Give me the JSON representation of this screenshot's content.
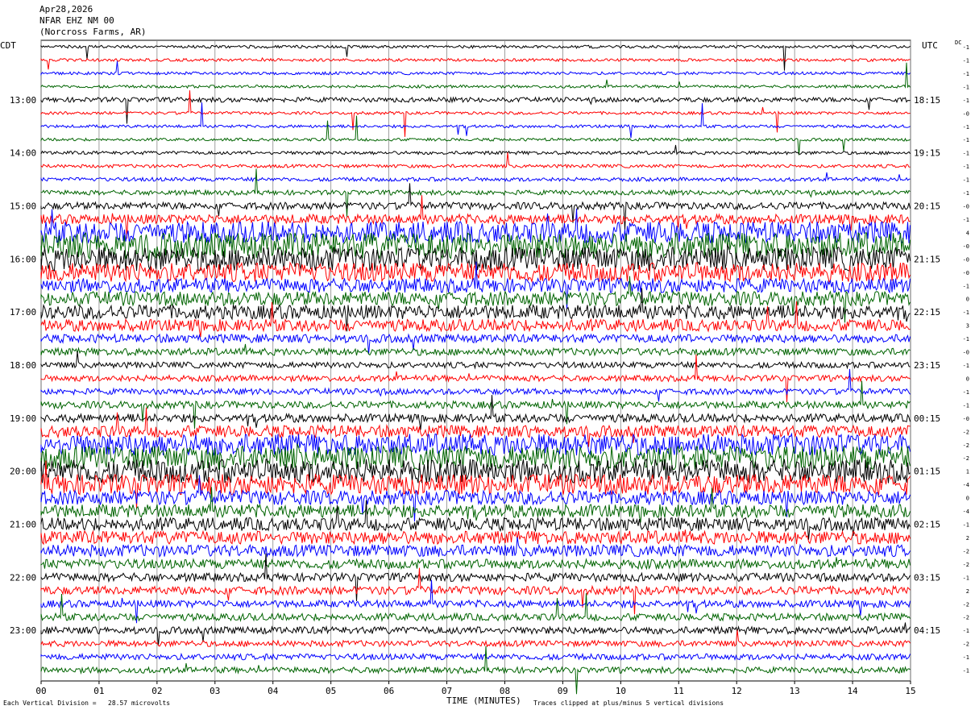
{
  "header": {
    "date": "Apr28,2026",
    "station": "NFAR EHZ NM 00",
    "location": "(Norcross Farms, AR)"
  },
  "left_timezone": "CDT",
  "right_timezone": "UTC",
  "dc_label": "DC",
  "footer": {
    "scale_note": "Each Vertical Division =   28.57 microvolts",
    "clip_note": "Traces clipped at plus/minus 5 vertical divisions"
  },
  "chart_data": {
    "type": "line",
    "xlabel": "TIME (MINUTES)",
    "xlim": [
      0,
      15
    ],
    "x_ticks": [
      "00",
      "01",
      "02",
      "03",
      "04",
      "05",
      "06",
      "07",
      "08",
      "09",
      "10",
      "11",
      "12",
      "13",
      "14",
      "15"
    ],
    "trace_count": 48,
    "colors": [
      "#000000",
      "#ff0000",
      "#0000ff",
      "#006400"
    ],
    "left_hour_labels": [
      {
        "trace": 4,
        "label": "13:00"
      },
      {
        "trace": 8,
        "label": "14:00"
      },
      {
        "trace": 12,
        "label": "15:00"
      },
      {
        "trace": 16,
        "label": "16:00"
      },
      {
        "trace": 20,
        "label": "17:00"
      },
      {
        "trace": 24,
        "label": "18:00"
      },
      {
        "trace": 28,
        "label": "19:00"
      },
      {
        "trace": 32,
        "label": "20:00"
      },
      {
        "trace": 36,
        "label": "21:00"
      },
      {
        "trace": 40,
        "label": "22:00"
      },
      {
        "trace": 44,
        "label": "23:00"
      }
    ],
    "right_hour_labels": [
      {
        "trace": 4,
        "label": "18:15"
      },
      {
        "trace": 8,
        "label": "19:15"
      },
      {
        "trace": 12,
        "label": "20:15"
      },
      {
        "trace": 16,
        "label": "21:15"
      },
      {
        "trace": 20,
        "label": "22:15"
      },
      {
        "trace": 24,
        "label": "23:15"
      },
      {
        "trace": 28,
        "label": "00:15"
      },
      {
        "trace": 32,
        "label": "01:15"
      },
      {
        "trace": 36,
        "label": "02:15"
      },
      {
        "trace": 40,
        "label": "03:15"
      },
      {
        "trace": 44,
        "label": "04:15"
      }
    ],
    "dc_offsets": [
      "-1",
      "-1",
      "-1",
      "-1",
      "-1",
      "-0",
      "-1",
      "-1",
      "-1",
      "-1",
      "-1",
      "-1",
      "-0",
      "-1",
      "4",
      "-0",
      "-0",
      "-0",
      "-1",
      "0",
      "-1",
      "3",
      "-1",
      "-0",
      "-1",
      "0",
      "-1",
      "-1",
      "-0",
      "-2",
      "-2",
      "-2",
      "1",
      "-4",
      "0",
      "-4",
      "-1",
      "2",
      "-2",
      "-2",
      "-1",
      "2",
      "-2",
      "-2",
      "-1",
      "-2",
      "-1",
      "-1"
    ],
    "amplitude_profile": [
      0.12,
      0.12,
      0.12,
      0.12,
      0.2,
      0.12,
      0.12,
      0.12,
      0.14,
      0.14,
      0.16,
      0.2,
      0.3,
      0.4,
      0.9,
      1.1,
      1.0,
      0.8,
      0.6,
      0.6,
      0.6,
      0.5,
      0.35,
      0.3,
      0.25,
      0.25,
      0.25,
      0.3,
      0.35,
      0.5,
      0.9,
      1.0,
      1.0,
      0.85,
      0.6,
      0.55,
      0.55,
      0.55,
      0.5,
      0.4,
      0.35,
      0.35,
      0.3,
      0.3,
      0.3,
      0.25,
      0.25,
      0.25
    ]
  }
}
